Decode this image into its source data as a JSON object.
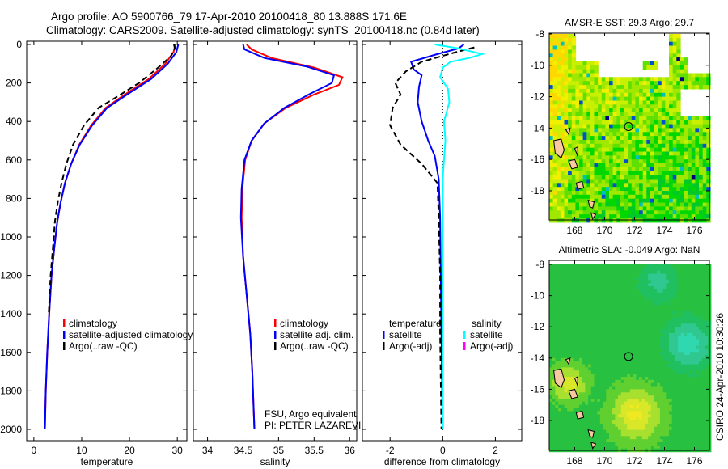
{
  "header": {
    "title_line1": "Argo profile: AO 5900766_79 17-Apr-2010 20100418_80 13.888S 171.6E",
    "title_line2": "Climatology: CARS2009. Satellite-adjusted climatology: synTS_20100418.nc (0.84d later)",
    "side_stamp": "CSIRO 24-Apr-2010 10:30:26"
  },
  "colors": {
    "climatology": "#ff0000",
    "satellite": "#0000ff",
    "argo": "#000000",
    "sal_satellite": "#00ffff",
    "sal_argo": "#ff00ff"
  },
  "chart_data": [
    {
      "type": "line",
      "xlabel": "temperature",
      "xlim": [
        -1.5,
        32
      ],
      "ylim": [
        0,
        2000
      ],
      "yreversed": true,
      "xticks": [
        0,
        10,
        20,
        30
      ],
      "yticks": [
        0,
        200,
        400,
        600,
        800,
        1000,
        1200,
        1400,
        1600,
        1800,
        2000
      ],
      "legend": [
        "climatology",
        "satellite-adjusted climatology",
        "Argo(..raw -QC)"
      ],
      "series": [
        {
          "name": "climatology",
          "color": "#ff0000",
          "dash": false,
          "points": [
            [
              29.6,
              0
            ],
            [
              29.2,
              40
            ],
            [
              27.5,
              100
            ],
            [
              24,
              180
            ],
            [
              19,
              260
            ],
            [
              15,
              330
            ],
            [
              12,
              420
            ],
            [
              9.5,
              520
            ],
            [
              7.8,
              620
            ],
            [
              6.5,
              720
            ],
            [
              5.6,
              820
            ],
            [
              4.9,
              920
            ],
            [
              4.3,
              1050
            ],
            [
              3.7,
              1200
            ],
            [
              3.2,
              1400
            ],
            [
              2.8,
              1600
            ],
            [
              2.5,
              1800
            ],
            [
              2.3,
              2000
            ]
          ]
        },
        {
          "name": "satellite-adjusted climatology",
          "color": "#0000ff",
          "dash": false,
          "points": [
            [
              30.2,
              0
            ],
            [
              29.8,
              40
            ],
            [
              28,
              100
            ],
            [
              24.5,
              180
            ],
            [
              19.5,
              260
            ],
            [
              15.3,
              330
            ],
            [
              12.2,
              420
            ],
            [
              9.6,
              520
            ],
            [
              7.8,
              620
            ],
            [
              6.5,
              720
            ],
            [
              5.6,
              820
            ],
            [
              4.9,
              920
            ],
            [
              4.3,
              1050
            ],
            [
              3.7,
              1200
            ],
            [
              3.2,
              1400
            ],
            [
              2.8,
              1600
            ],
            [
              2.5,
              1800
            ],
            [
              2.3,
              2000
            ]
          ]
        },
        {
          "name": "Argo(..raw -QC)",
          "color": "#000000",
          "dash": true,
          "points": [
            [
              29.3,
              0
            ],
            [
              29.5,
              20
            ],
            [
              28.7,
              60
            ],
            [
              26,
              120
            ],
            [
              22,
              200
            ],
            [
              17.5,
              270
            ],
            [
              13.5,
              330
            ],
            [
              10.5,
              420
            ],
            [
              8.2,
              520
            ],
            [
              6.8,
              620
            ],
            [
              5.8,
              720
            ],
            [
              5,
              820
            ],
            [
              4.4,
              920
            ],
            [
              4,
              1050
            ],
            [
              3.5,
              1200
            ],
            [
              3.1,
              1400
            ]
          ]
        }
      ]
    },
    {
      "type": "line",
      "xlabel": "salinity",
      "xlim": [
        33.8,
        36.1
      ],
      "ylim": [
        0,
        2000
      ],
      "yreversed": true,
      "xticks": [
        34,
        34.5,
        35,
        35.5,
        36
      ],
      "legend": [
        "climatology",
        "satellite adj. clim.",
        "Argo(..raw -QC)"
      ],
      "annotation": [
        "FSU, Argo equivalent",
        "PI: PETER LAZAREVICH"
      ],
      "series": [
        {
          "name": "climatology",
          "color": "#ff0000",
          "dash": false,
          "points": [
            [
              34.55,
              0
            ],
            [
              34.62,
              25
            ],
            [
              34.9,
              70
            ],
            [
              35.5,
              120
            ],
            [
              35.9,
              170
            ],
            [
              35.85,
              210
            ],
            [
              35.5,
              260
            ],
            [
              35.1,
              330
            ],
            [
              34.8,
              410
            ],
            [
              34.62,
              500
            ],
            [
              34.53,
              600
            ],
            [
              34.49,
              750
            ],
            [
              34.48,
              900
            ],
            [
              34.5,
              1100
            ],
            [
              34.55,
              1300
            ],
            [
              34.6,
              1500
            ],
            [
              34.63,
              1700
            ],
            [
              34.66,
              2000
            ]
          ]
        },
        {
          "name": "satellite adj. clim.",
          "color": "#0000ff",
          "dash": false,
          "points": [
            [
              34.5,
              0
            ],
            [
              34.52,
              25
            ],
            [
              34.8,
              70
            ],
            [
              35.4,
              115
            ],
            [
              35.78,
              160
            ],
            [
              35.75,
              200
            ],
            [
              35.45,
              255
            ],
            [
              35.08,
              330
            ],
            [
              34.8,
              410
            ],
            [
              34.62,
              500
            ],
            [
              34.52,
              600
            ],
            [
              34.48,
              750
            ],
            [
              34.47,
              900
            ],
            [
              34.5,
              1100
            ],
            [
              34.55,
              1300
            ],
            [
              34.6,
              1500
            ],
            [
              34.63,
              1700
            ],
            [
              34.66,
              2000
            ]
          ]
        }
      ]
    },
    {
      "type": "line",
      "xlabel": "difference from climatology",
      "xlim": [
        -3.05,
        3
      ],
      "ylim": [
        0,
        2000
      ],
      "yreversed": true,
      "xticks": [
        -2,
        0,
        2
      ],
      "legend_temperature": [
        "temperature",
        "satellite",
        "Argo(-adj)"
      ],
      "legend_salinity": [
        "salinity",
        "satellite",
        "Argo(-adj)"
      ],
      "series": [
        {
          "name": "temperature satellite",
          "color": "#0000ff",
          "dash": false,
          "points": [
            [
              0.8,
              0
            ],
            [
              0.6,
              20
            ],
            [
              -0.2,
              50
            ],
            [
              -1.2,
              90
            ],
            [
              -1.1,
              130
            ],
            [
              -0.8,
              160
            ],
            [
              -0.9,
              220
            ],
            [
              -0.95,
              300
            ],
            [
              -0.8,
              400
            ],
            [
              -0.55,
              500
            ],
            [
              -0.3,
              580
            ],
            [
              -0.15,
              700
            ],
            [
              -0.1,
              900
            ],
            [
              -0.05,
              1500
            ],
            [
              0,
              2000
            ]
          ]
        },
        {
          "name": "temperature Argo(-adj)",
          "color": "#000000",
          "dash": true,
          "points": [
            [
              1.2,
              15
            ],
            [
              0.5,
              40
            ],
            [
              -0.8,
              90
            ],
            [
              -1.4,
              140
            ],
            [
              -1.8,
              200
            ],
            [
              -1.6,
              260
            ],
            [
              -1.9,
              330
            ],
            [
              -2,
              420
            ],
            [
              -1.6,
              520
            ],
            [
              -0.8,
              620
            ],
            [
              -0.2,
              720
            ],
            [
              -0.15,
              900
            ],
            [
              -0.1,
              1200
            ],
            [
              -0.1,
              1500
            ],
            [
              -0.05,
              2000
            ]
          ]
        },
        {
          "name": "salinity satellite",
          "color": "#00ffff",
          "dash": false,
          "points": [
            [
              -0.3,
              0
            ],
            [
              0.6,
              20
            ],
            [
              1.5,
              50
            ],
            [
              1,
              70
            ],
            [
              0.3,
              90
            ],
            [
              0,
              120
            ],
            [
              -0.1,
              170
            ],
            [
              0.2,
              230
            ],
            [
              0.25,
              300
            ],
            [
              0.05,
              400
            ],
            [
              0.1,
              500
            ],
            [
              0.05,
              600
            ],
            [
              0,
              700
            ],
            [
              0,
              2000
            ]
          ]
        }
      ]
    }
  ],
  "maps": [
    {
      "title": "AMSR-E SST: 29.3 Argo: 29.7",
      "lon_range": [
        166.3,
        177
      ],
      "lat_range": [
        -19.9,
        -8
      ],
      "xticks": [
        168,
        170,
        172,
        174,
        176
      ],
      "yticks": [
        -8,
        -10,
        -12,
        -14,
        -16,
        -18
      ],
      "marker": [
        171.6,
        -13.9
      ]
    },
    {
      "title": "Altimetric SLA: -0.049 Argo: NaN",
      "lon_range": [
        166.3,
        177
      ],
      "lat_range": [
        -19.9,
        -8
      ],
      "xticks": [
        168,
        170,
        172,
        174,
        176
      ],
      "yticks": [
        -8,
        -10,
        -12,
        -14,
        -16,
        -18
      ],
      "marker": [
        171.6,
        -13.9
      ]
    }
  ]
}
